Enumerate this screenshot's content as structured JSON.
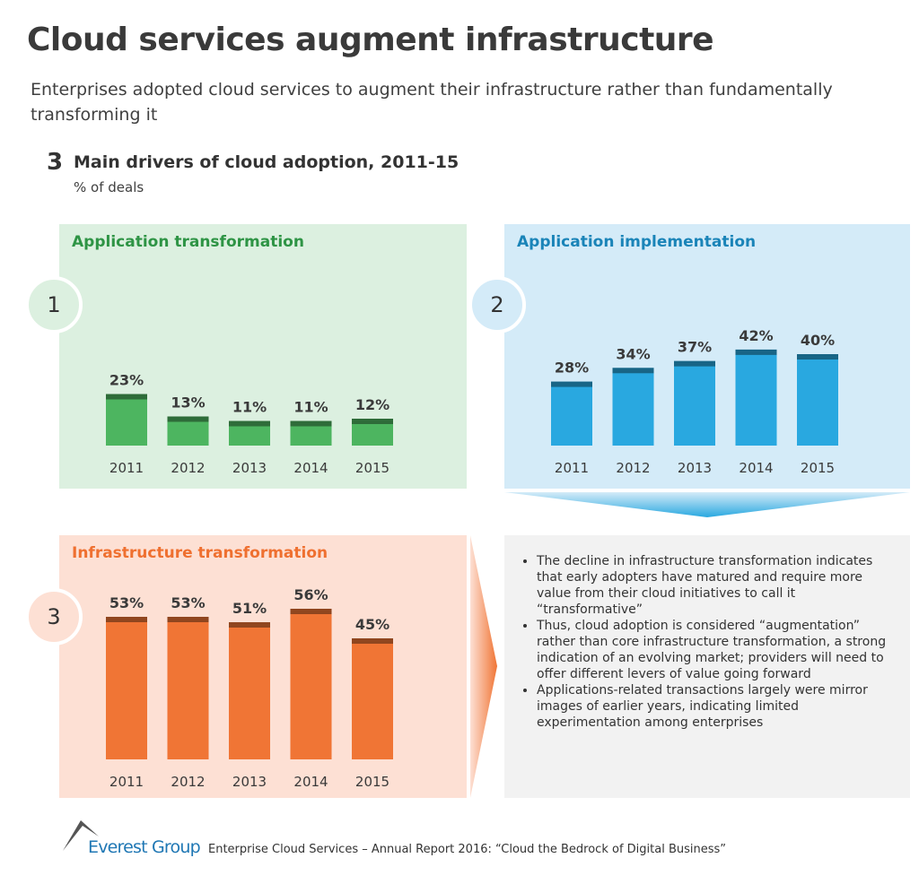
{
  "title": "Cloud services augment infrastructure",
  "subtitle": "Enterprises adopted cloud services to augment their infrastructure rather than fundamentally transforming it",
  "chart_number": "3",
  "chart_heading": "Main drivers of cloud adoption, 2011-15",
  "unit": "% of deals",
  "chart_data": [
    {
      "type": "bar",
      "title": "Application transformation",
      "badge": "1",
      "categories": [
        "2011",
        "2012",
        "2013",
        "2014",
        "2015"
      ],
      "values": [
        23,
        13,
        11,
        11,
        12
      ],
      "labels": [
        "23%",
        "13%",
        "11%",
        "11%",
        "12%"
      ],
      "color": "#4db560",
      "bg": "#dcf0e0",
      "title_color": "#2e9445"
    },
    {
      "type": "bar",
      "title": "Application implementation",
      "badge": "2",
      "categories": [
        "2011",
        "2012",
        "2013",
        "2014",
        "2015"
      ],
      "values": [
        28,
        34,
        37,
        42,
        40
      ],
      "labels": [
        "28%",
        "34%",
        "37%",
        "42%",
        "40%"
      ],
      "color": "#29a8e0",
      "bg": "#d4ebf8",
      "title_color": "#1a84b8"
    },
    {
      "type": "bar",
      "title": "Infrastructure transformation",
      "badge": "3",
      "categories": [
        "2011",
        "2012",
        "2013",
        "2014",
        "2015"
      ],
      "values": [
        53,
        53,
        51,
        56,
        45
      ],
      "labels": [
        "53%",
        "53%",
        "51%",
        "56%",
        "45%"
      ],
      "color": "#f07535",
      "bg": "#fde0d4",
      "title_color": "#ef7030"
    }
  ],
  "notes": [
    "The decline in infrastructure transformation indicates that early adopters have matured and require more value from their cloud initiatives to call it “transformative”",
    "Thus, cloud adoption is considered “augmentation” rather than core infrastructure transformation, a strong indication of an evolving market; providers will need to offer different levers of value going forward",
    "Applications-related transactions largely were mirror images of earlier years, indicating limited experimentation  among enterprises"
  ],
  "footer": {
    "brand": "Everest Group",
    "text": "Enterprise Cloud Services – Annual Report 2016:  “Cloud the Bedrock of Digital Business”"
  }
}
